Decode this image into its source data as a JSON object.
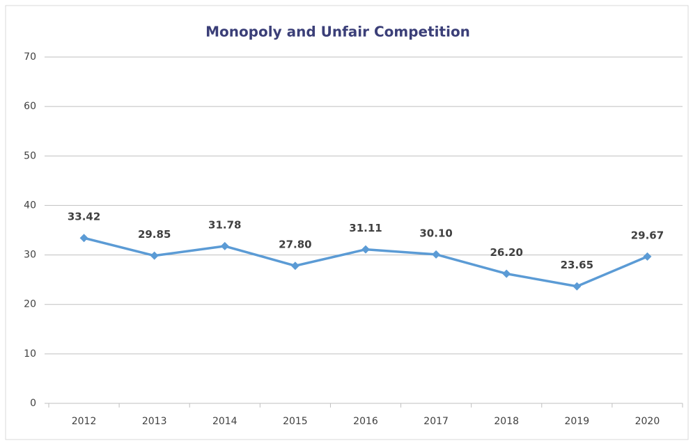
{
  "chart_data": {
    "type": "line",
    "title": "Monopoly and Unfair Competition",
    "categories": [
      "2012",
      "2013",
      "2014",
      "2015",
      "2016",
      "2017",
      "2018",
      "2019",
      "2020"
    ],
    "values": [
      33.42,
      29.85,
      31.78,
      27.8,
      31.11,
      30.1,
      26.2,
      23.65,
      29.67
    ],
    "value_labels": [
      "33.42",
      "29.85",
      "31.78",
      "27.80",
      "31.11",
      "30.10",
      "26.20",
      "23.65",
      "29.67"
    ],
    "color": "#5b9bd5",
    "ylim": [
      0,
      70
    ],
    "yticks": [
      0,
      10,
      20,
      30,
      40,
      50,
      60,
      70
    ],
    "grid": true
  }
}
